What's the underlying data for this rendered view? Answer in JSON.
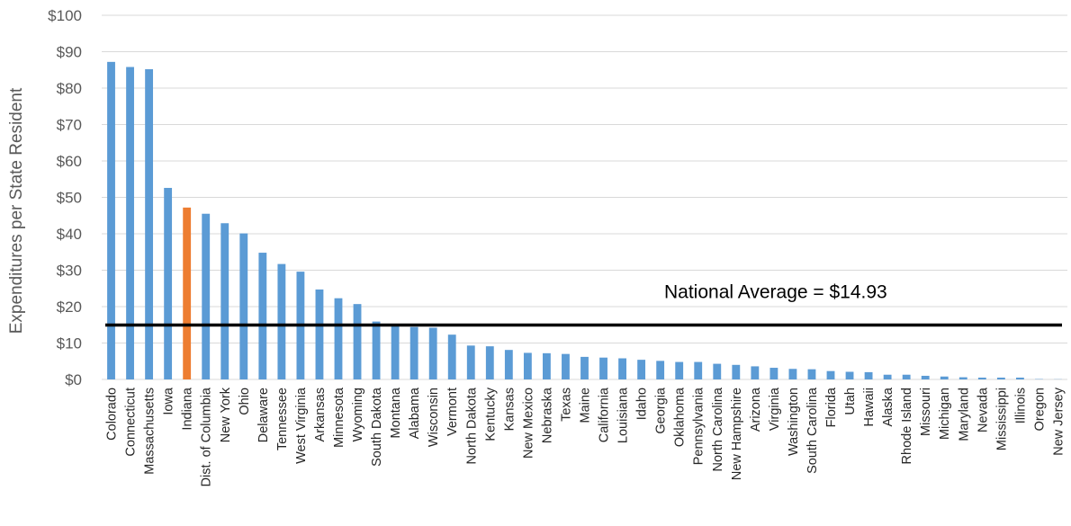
{
  "chart_data": {
    "type": "bar",
    "title": "",
    "xlabel": "",
    "ylabel": "Expenditures per State Resident",
    "ylim": [
      0,
      100
    ],
    "yticks": [
      0,
      10,
      20,
      30,
      40,
      50,
      60,
      70,
      80,
      90,
      100
    ],
    "ytick_labels": [
      "$0",
      "$10",
      "$20",
      "$30",
      "$40",
      "$50",
      "$60",
      "$70",
      "$80",
      "$90",
      "$100"
    ],
    "grid": true,
    "colors": {
      "default": "#5b9bd5",
      "highlight": "#ed7d31",
      "reference_line": "#000000"
    },
    "highlight_category": "Indiana",
    "reference_line": {
      "value": 14.93,
      "label": "National Average = $14.93"
    },
    "categories": [
      "Colorado",
      "Connecticut",
      "Massachusetts",
      "Iowa",
      "Indiana",
      "Dist. of Columbia",
      "New York",
      "Ohio",
      "Delaware",
      "Tennessee",
      "West Virginia",
      "Arkansas",
      "Minnesota",
      "Wyoming",
      "South Dakota",
      "Montana",
      "Alabama",
      "Wisconsin",
      "Vermont",
      "North Dakota",
      "Kentucky",
      "Kansas",
      "New Mexico",
      "Nebraska",
      "Texas",
      "Maine",
      "California",
      "Louisiana",
      "Idaho",
      "Georgia",
      "Oklahoma",
      "Pennsylvania",
      "North Carolina",
      "New Hampshire",
      "Arizona",
      "Virginia",
      "Washington",
      "South Carolina",
      "Florida",
      "Utah",
      "Hawaii",
      "Alaska",
      "Rhode Island",
      "Missouri",
      "Michigan",
      "Maryland",
      "Nevada",
      "Mississippi",
      "Illinois",
      "Oregon",
      "New Jersey"
    ],
    "values": [
      87.2,
      85.8,
      85.2,
      52.6,
      47.2,
      45.5,
      42.9,
      40.1,
      34.8,
      31.7,
      29.6,
      24.7,
      22.3,
      20.7,
      15.9,
      14.9,
      14.4,
      14.2,
      12.3,
      9.3,
      9.1,
      8.1,
      7.3,
      7.2,
      7.0,
      6.2,
      6.0,
      5.8,
      5.4,
      5.1,
      4.8,
      4.8,
      4.3,
      4.0,
      3.6,
      3.2,
      2.9,
      2.8,
      2.3,
      2.1,
      2.0,
      1.3,
      1.3,
      1.0,
      0.8,
      0.6,
      0.5,
      0.5,
      0.5,
      0.1,
      0.05
    ]
  }
}
